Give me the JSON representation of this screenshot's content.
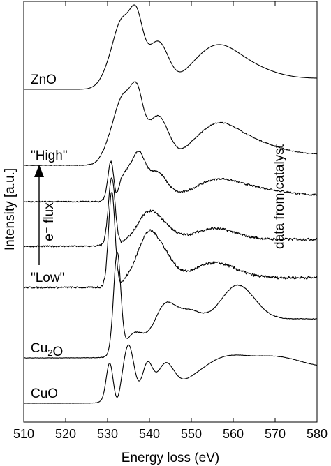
{
  "chart_data": {
    "type": "line",
    "title": "",
    "xlabel": "Energy loss (eV)",
    "ylabel": "Intensity [a.u.]",
    "xlim": [
      510,
      580
    ],
    "xticks": [
      510,
      520,
      530,
      540,
      550,
      560,
      570,
      580
    ],
    "xtick_labels": [
      "510",
      "520",
      "530",
      "540",
      "550",
      "560",
      "570",
      "580"
    ],
    "grid": false,
    "legend": "none (curves labelled directly)",
    "line_color": "#000000",
    "annotations": {
      "flux_arrow": "e⁻ flux",
      "side_note": "data from catalyst"
    },
    "series": [
      {
        "name": "ZnO",
        "label_parts": [
          {
            "t": "ZnO"
          }
        ],
        "baseline": 128,
        "amp": 112,
        "peaks": [
          {
            "e": 531.5,
            "w": 2.4,
            "h": 0.25
          },
          {
            "e": 533.5,
            "w": 1.8,
            "h": 0.55
          },
          {
            "e": 536.8,
            "w": 1.6,
            "h": 0.78
          },
          {
            "e": 542.0,
            "w": 2.5,
            "h": 0.5
          },
          {
            "e": 555.5,
            "w": 5.0,
            "h": 0.36
          },
          {
            "e": 563.0,
            "w": 6.0,
            "h": 0.15
          }
        ],
        "dip": {
          "e": 546.5,
          "w": 2.0,
          "d": 0.05
        },
        "edge": {
          "e": 529.0,
          "w": 0.9,
          "h": 0.1
        },
        "tail": 0.04,
        "noise": 0.0
      },
      {
        "name": "\"High\"",
        "label_parts": [
          {
            "t": "\"High\""
          }
        ],
        "baseline": 237,
        "amp": 112,
        "peaks": [
          {
            "e": 531.8,
            "w": 2.2,
            "h": 0.3
          },
          {
            "e": 534.0,
            "w": 1.8,
            "h": 0.55
          },
          {
            "e": 537.0,
            "w": 1.5,
            "h": 0.72
          },
          {
            "e": 542.0,
            "w": 2.5,
            "h": 0.52
          },
          {
            "e": 556.0,
            "w": 5.0,
            "h": 0.36
          },
          {
            "e": 565.0,
            "w": 6.0,
            "h": 0.14
          }
        ],
        "dip": {
          "e": 546.5,
          "w": 2.0,
          "d": 0.04
        },
        "edge": {
          "e": 529.0,
          "w": 0.9,
          "h": 0.1
        },
        "tail": 0.04,
        "noise": 0.012
      },
      {
        "name": "",
        "label_parts": [],
        "baseline": 289,
        "amp": 90,
        "peaks": [
          {
            "e": 530.8,
            "w": 0.7,
            "h": 0.55
          },
          {
            "e": 534.5,
            "w": 2.0,
            "h": 0.4
          },
          {
            "e": 537.5,
            "w": 1.4,
            "h": 0.5
          },
          {
            "e": 541.5,
            "w": 2.5,
            "h": 0.42
          },
          {
            "e": 556.0,
            "w": 5.0,
            "h": 0.24
          },
          {
            "e": 566.0,
            "w": 6.0,
            "h": 0.1
          }
        ],
        "dip": {
          "e": 532.0,
          "w": 0.6,
          "d": 0.2
        },
        "edge": {
          "e": 529.6,
          "w": 0.6,
          "h": 0.05
        },
        "tail": 0.05,
        "noise": 0.03
      },
      {
        "name": "",
        "label_parts": [],
        "baseline": 353,
        "amp": 100,
        "peaks": [
          {
            "e": 531.0,
            "w": 0.8,
            "h": 0.92
          },
          {
            "e": 539.5,
            "w": 2.5,
            "h": 0.38
          },
          {
            "e": 543.5,
            "w": 2.5,
            "h": 0.18
          },
          {
            "e": 555.5,
            "w": 5.0,
            "h": 0.16
          }
        ],
        "dip": {
          "e": 533.0,
          "w": 0.8,
          "d": 0.03
        },
        "edge": {
          "e": 529.5,
          "w": 0.6,
          "h": 0.06
        },
        "tail": 0.04,
        "noise": 0.035
      },
      {
        "name": "\"Low\"",
        "label_parts": [
          {
            "t": "\"Low\""
          }
        ],
        "baseline": 412,
        "amp": 100,
        "peaks": [
          {
            "e": 531.0,
            "w": 0.75,
            "h": 1.3
          },
          {
            "e": 539.5,
            "w": 2.5,
            "h": 0.62
          },
          {
            "e": 543.5,
            "w": 2.5,
            "h": 0.3
          },
          {
            "e": 555.5,
            "w": 5.0,
            "h": 0.22
          }
        ],
        "dip": {
          "e": 533.0,
          "w": 0.8,
          "d": 0.04
        },
        "edge": {
          "e": 529.5,
          "w": 0.6,
          "h": 0.08
        },
        "tail": 0.06,
        "noise": 0.04
      },
      {
        "name": "Cu₂O",
        "label_parts": [
          {
            "t": "Cu"
          },
          {
            "t": "2",
            "sub": true
          },
          {
            "t": "O"
          }
        ],
        "baseline": 513,
        "amp": 100,
        "peaks": [
          {
            "e": 532.3,
            "w": 0.85,
            "h": 1.4
          },
          {
            "e": 536.5,
            "w": 2.2,
            "h": 0.25
          },
          {
            "e": 543.5,
            "w": 2.5,
            "h": 0.52
          },
          {
            "e": 549.0,
            "w": 3.0,
            "h": 0.3
          },
          {
            "e": 561.0,
            "w": 4.0,
            "h": 0.5
          }
        ],
        "dip": {
          "e": 534.0,
          "w": 0.9,
          "d": 0.03
        },
        "edge": {
          "e": 530.5,
          "w": 0.6,
          "h": 0.08
        },
        "tail": 0.48,
        "noise": 0.01
      },
      {
        "name": "CuO",
        "label_parts": [
          {
            "t": "CuO"
          }
        ],
        "baseline": 578,
        "amp": 90,
        "peaks": [
          {
            "e": 530.5,
            "w": 0.8,
            "h": 0.58
          },
          {
            "e": 535.0,
            "w": 1.3,
            "h": 0.85
          },
          {
            "e": 539.5,
            "w": 1.2,
            "h": 0.5
          },
          {
            "e": 543.8,
            "w": 2.0,
            "h": 0.45
          },
          {
            "e": 558.0,
            "w": 5.0,
            "h": 0.2
          },
          {
            "e": 570.0,
            "w": 6.0,
            "h": 0.18
          }
        ],
        "dip": {
          "e": 532.3,
          "w": 0.7,
          "d": 0.12
        },
        "edge": {
          "e": 528.8,
          "w": 0.7,
          "h": 0.06
        },
        "tail": 0.5,
        "noise": 0.005
      }
    ]
  }
}
